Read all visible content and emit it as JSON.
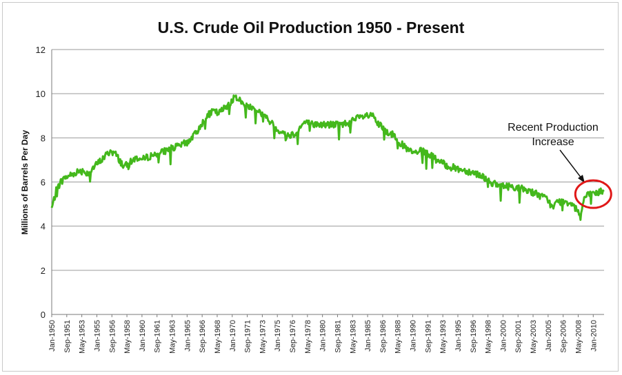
{
  "chart_data": {
    "type": "line",
    "title": "U.S. Crude Oil Production 1950 - Present",
    "xlabel": "",
    "ylabel": "Millions of Barrels Per Day",
    "ylim": [
      0,
      12
    ],
    "yticks": [
      "0",
      "2",
      "4",
      "6",
      "8",
      "10",
      "12"
    ],
    "grid": true,
    "x_start_year": 1950,
    "x_end_year": 2011.2,
    "categories": [
      "Jan-1950",
      "Sep-1951",
      "May-1953",
      "Jan-1955",
      "Sep-1956",
      "May-1958",
      "Jan-1960",
      "Sep-1961",
      "May-1963",
      "Jan-1965",
      "Sep-1966",
      "May-1968",
      "Jan-1970",
      "Sep-1971",
      "May-1973",
      "Jan-1975",
      "Sep-1976",
      "May-1978",
      "Jan-1980",
      "Sep-1981",
      "May-1983",
      "Jan-1985",
      "Sep-1986",
      "May-1988",
      "Jan-1990",
      "Sep-1991",
      "May-1993",
      "Jan-1995",
      "Sep-1996",
      "May-1998",
      "Jan-2000",
      "Sep-2001",
      "May-2003",
      "Jan-2005",
      "Sep-2006",
      "May-2008",
      "Jan-2010"
    ],
    "series": [
      {
        "name": "U.S. Crude Oil Production",
        "color": "#44b81c",
        "x": [
          1950.0,
          1950.5,
          1951.0,
          1951.5,
          1952.0,
          1952.5,
          1953.0,
          1953.5,
          1954.0,
          1954.5,
          1955.0,
          1955.5,
          1956.0,
          1956.5,
          1957.0,
          1957.5,
          1958.0,
          1958.5,
          1959.0,
          1959.5,
          1960.0,
          1961.0,
          1962.0,
          1963.0,
          1964.0,
          1965.0,
          1966.0,
          1966.5,
          1967.0,
          1967.5,
          1968.0,
          1968.5,
          1969.0,
          1969.5,
          1970.0,
          1970.5,
          1971.0,
          1971.5,
          1972.0,
          1972.5,
          1973.0,
          1974.0,
          1975.0,
          1976.0,
          1977.0,
          1978.0,
          1979.0,
          1980.0,
          1981.0,
          1982.0,
          1983.0,
          1984.0,
          1985.0,
          1985.5,
          1986.0,
          1986.5,
          1987.0,
          1988.0,
          1989.0,
          1990.0,
          1991.0,
          1992.0,
          1993.0,
          1994.0,
          1995.0,
          1996.0,
          1997.0,
          1998.0,
          1999.0,
          2000.0,
          2001.0,
          2002.0,
          2003.0,
          2004.0,
          2005.0,
          2005.5,
          2006.0,
          2007.0,
          2008.0,
          2008.6,
          2009.0,
          2009.5,
          2010.0,
          2010.5,
          2011.0
        ],
        "values": [
          4.8,
          5.6,
          6.0,
          6.2,
          6.3,
          6.4,
          6.5,
          6.5,
          6.4,
          6.6,
          6.8,
          7.0,
          7.2,
          7.4,
          7.3,
          7.0,
          6.7,
          6.8,
          7.0,
          7.1,
          7.0,
          7.2,
          7.3,
          7.5,
          7.6,
          7.8,
          8.2,
          8.6,
          8.8,
          9.1,
          9.2,
          9.1,
          9.3,
          9.5,
          9.7,
          9.9,
          9.6,
          9.5,
          9.4,
          9.3,
          9.2,
          8.8,
          8.4,
          8.1,
          8.2,
          8.7,
          8.6,
          8.6,
          8.6,
          8.6,
          8.7,
          8.9,
          9.0,
          9.0,
          8.7,
          8.5,
          8.3,
          8.1,
          7.6,
          7.3,
          7.4,
          7.2,
          6.9,
          6.7,
          6.6,
          6.5,
          6.4,
          6.2,
          5.9,
          5.8,
          5.8,
          5.7,
          5.6,
          5.4,
          5.2,
          4.8,
          5.1,
          5.1,
          5.0,
          4.4,
          5.3,
          5.4,
          5.5,
          5.5,
          5.6
        ]
      }
    ],
    "annotation": {
      "text_line1": "Recent Production",
      "text_line2": "Increase",
      "circle_color": "#e01818",
      "circle_center_x": 2010.0,
      "circle_center_y": 5.45
    }
  }
}
